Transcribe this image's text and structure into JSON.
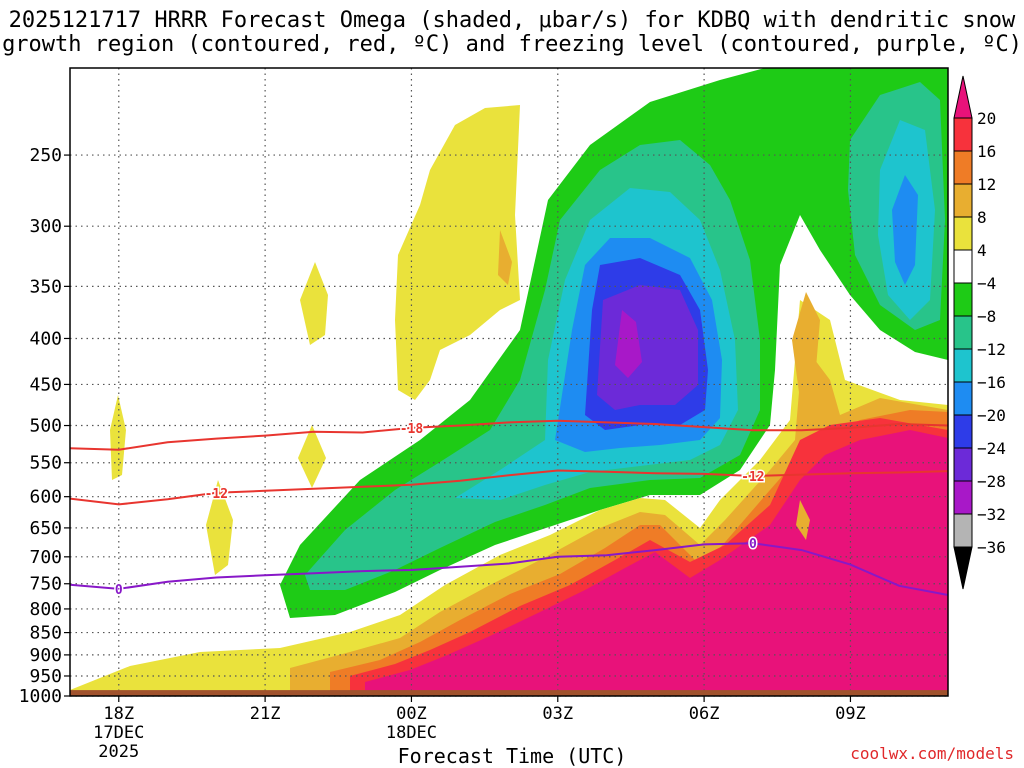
{
  "title": {
    "line1": "2025121717 HRRR Forecast Omega (shaded, μbar/s) for KDBQ with dendritic snow",
    "line2": "growth region (contoured, red, ºC) and freezing level (contoured, purple, ºC)"
  },
  "credit": "coolwx.com/models",
  "chart_data": {
    "type": "heatmap",
    "xlabel": "Forecast Time (UTC)",
    "ylabel": "",
    "y_scale": "log-pressure (hPa, inverted)",
    "y_ticks": [
      250,
      300,
      350,
      400,
      450,
      500,
      550,
      600,
      650,
      700,
      750,
      800,
      850,
      900,
      950,
      1000
    ],
    "ylim_hpa": [
      1000,
      200
    ],
    "x_ticks": [
      {
        "hour": 18,
        "lines": [
          "18Z",
          "17DEC",
          "2025"
        ]
      },
      {
        "hour": 21,
        "lines": [
          "21Z"
        ]
      },
      {
        "hour": 24,
        "lines": [
          "00Z",
          "18DEC"
        ]
      },
      {
        "hour": 27,
        "lines": [
          "03Z"
        ]
      },
      {
        "hour": 30,
        "lines": [
          "06Z"
        ]
      },
      {
        "hour": 33,
        "lines": [
          "09Z"
        ]
      }
    ],
    "xlim_hours": [
      17,
      35
    ],
    "grid": true,
    "colorbar": {
      "labels": [
        "20",
        "16",
        "12",
        "8",
        "4",
        "−4",
        "−8",
        "−12",
        "−16",
        "−20",
        "−24",
        "−28",
        "−32",
        "−36"
      ],
      "colors": [
        "#e8127a",
        "#f7323c",
        "#ef7c26",
        "#e8ae30",
        "#eae23c",
        "#ffffff",
        "#1ecb16",
        "#28c48a",
        "#1ec4ce",
        "#1e8cf2",
        "#2e3ce8",
        "#6c2ad8",
        "#a818c8",
        "#b4b4b4",
        "#000000"
      ]
    },
    "contours": [
      {
        "label": "-18",
        "color": "#e8352f",
        "points": [
          [
            17,
            530
          ],
          [
            18,
            532
          ],
          [
            19,
            522
          ],
          [
            20,
            517
          ],
          [
            21,
            513
          ],
          [
            22,
            508
          ],
          [
            23,
            509
          ],
          [
            24,
            503
          ],
          [
            25,
            500
          ],
          [
            26,
            496
          ],
          [
            27,
            494
          ],
          [
            28,
            496
          ],
          [
            29,
            498
          ],
          [
            30,
            502
          ],
          [
            31,
            506
          ],
          [
            32,
            506
          ],
          [
            33,
            503
          ],
          [
            34,
            498
          ],
          [
            35,
            500
          ]
        ]
      },
      {
        "label": "-12",
        "color": "#e8352f",
        "points": [
          [
            17,
            603
          ],
          [
            18,
            612
          ],
          [
            19,
            604
          ],
          [
            20,
            594
          ],
          [
            21,
            591
          ],
          [
            22,
            588
          ],
          [
            23,
            585
          ],
          [
            24,
            582
          ],
          [
            25,
            576
          ],
          [
            26,
            568
          ],
          [
            27,
            561
          ],
          [
            28,
            563
          ],
          [
            29,
            565
          ],
          [
            30,
            566
          ],
          [
            31,
            569
          ],
          [
            32,
            567
          ],
          [
            33,
            565
          ],
          [
            34,
            564
          ],
          [
            35,
            562
          ]
        ]
      },
      {
        "label": "0",
        "color": "#8818c8",
        "points": [
          [
            17,
            752
          ],
          [
            18,
            760
          ],
          [
            19,
            746
          ],
          [
            20,
            738
          ],
          [
            21,
            734
          ],
          [
            22,
            730
          ],
          [
            23,
            726
          ],
          [
            24,
            724
          ],
          [
            25,
            718
          ],
          [
            26,
            712
          ],
          [
            27,
            700
          ],
          [
            28,
            697
          ],
          [
            29,
            688
          ],
          [
            30,
            678
          ],
          [
            31,
            676
          ],
          [
            32,
            688
          ],
          [
            33,
            714
          ],
          [
            34,
            754
          ],
          [
            35,
            772
          ]
        ]
      }
    ],
    "terrain": {
      "color": "#a0522d",
      "pressure_top_hpa": 985
    }
  }
}
